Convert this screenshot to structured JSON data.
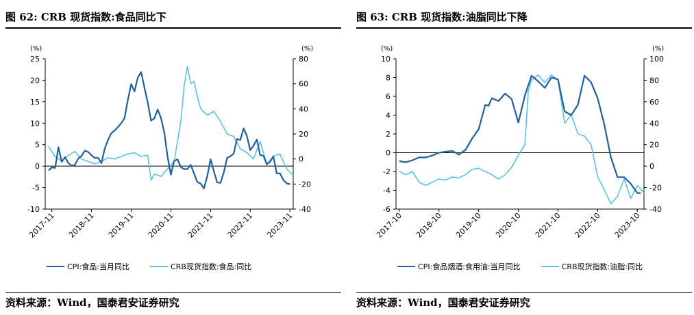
{
  "panels": [
    {
      "title": "图 62: CRB 现货指数:食品同比下",
      "source": "资料来源：Wind，国泰君安证券研究",
      "legend": [
        {
          "label": "CPI:食品:当月同比",
          "color": "#1f5f9e"
        },
        {
          "label": "CRB现货指数:食品:同比",
          "color": "#5bc0eb"
        }
      ]
    },
    {
      "title": "图 63: CRB 现货指数:油脂同比下降",
      "source": "资料来源：Wind，国泰君安证券研究",
      "legend": [
        {
          "label": "CPI:食品烟酒:食用油:当月同比",
          "color": "#1f5f9e"
        },
        {
          "label": "CRB现货指数:油脂:同比",
          "color": "#5bc0eb"
        }
      ]
    }
  ],
  "chart_data": [
    {
      "type": "line",
      "x_ticks": [
        "2017-11",
        "2018-11",
        "2019-11",
        "2020-11",
        "2021-11",
        "2022-11",
        "2023-11"
      ],
      "x_range": [
        "2017-09",
        "2023-12"
      ],
      "left_unit": "(%)",
      "right_unit": "(%)",
      "ylim_left": [
        -10,
        25
      ],
      "yticks_left": [
        -10,
        -5,
        0,
        5,
        10,
        15,
        20,
        25
      ],
      "ylim_right": [
        -40,
        80
      ],
      "yticks_right": [
        -40,
        -20,
        0,
        20,
        40,
        60,
        80
      ],
      "zero_line": true,
      "series": [
        {
          "name": "CPI:食品:当月同比",
          "axis": "left",
          "color": "#1f5f9e",
          "x": [
            "2017-10",
            "2017-11",
            "2017-12",
            "2018-01",
            "2018-02",
            "2018-03",
            "2018-04",
            "2018-05",
            "2018-06",
            "2018-07",
            "2018-08",
            "2018-09",
            "2018-10",
            "2018-11",
            "2018-12",
            "2019-01",
            "2019-02",
            "2019-03",
            "2019-04",
            "2019-05",
            "2019-06",
            "2019-07",
            "2019-08",
            "2019-09",
            "2019-10",
            "2019-11",
            "2019-12",
            "2020-01",
            "2020-02",
            "2020-03",
            "2020-04",
            "2020-05",
            "2020-06",
            "2020-07",
            "2020-08",
            "2020-09",
            "2020-10",
            "2020-11",
            "2020-12",
            "2021-01",
            "2021-02",
            "2021-03",
            "2021-04",
            "2021-05",
            "2021-06",
            "2021-07",
            "2021-08",
            "2021-09",
            "2021-10",
            "2021-11",
            "2021-12",
            "2022-01",
            "2022-02",
            "2022-03",
            "2022-04",
            "2022-05",
            "2022-06",
            "2022-07",
            "2022-08",
            "2022-09",
            "2022-10",
            "2022-11",
            "2022-12",
            "2023-01",
            "2023-02",
            "2023-03",
            "2023-04",
            "2023-05",
            "2023-06",
            "2023-07",
            "2023-08",
            "2023-09",
            "2023-10",
            "2023-11"
          ],
          "y": [
            -1.0,
            -0.3,
            -0.4,
            4.4,
            1.0,
            2.1,
            0.7,
            0.1,
            0.3,
            1.8,
            2.4,
            3.6,
            3.3,
            2.5,
            1.9,
            1.9,
            0.7,
            4.1,
            6.1,
            7.7,
            8.3,
            9.1,
            10.0,
            11.2,
            15.5,
            19.1,
            17.4,
            20.6,
            21.9,
            18.3,
            14.8,
            10.6,
            11.1,
            13.2,
            11.2,
            7.9,
            2.2,
            -2.0,
            1.2,
            1.6,
            -0.2,
            -0.7,
            -0.7,
            0.3,
            -1.7,
            -3.7,
            -4.1,
            -5.2,
            -2.4,
            1.6,
            -1.2,
            -3.8,
            -3.9,
            -1.5,
            1.9,
            2.3,
            2.9,
            6.3,
            6.1,
            8.8,
            7.0,
            3.7,
            4.8,
            6.2,
            2.6,
            2.4,
            0.4,
            1.0,
            2.3,
            -1.7,
            -1.7,
            -3.2,
            -4.0,
            -4.2
          ]
        },
        {
          "name": "CRB现货指数:食品:同比",
          "axis": "right",
          "color": "#5bc0eb",
          "x": [
            "2017-10",
            "2017-12",
            "2018-02",
            "2018-04",
            "2018-06",
            "2018-08",
            "2018-10",
            "2018-12",
            "2019-02",
            "2019-04",
            "2019-06",
            "2019-08",
            "2019-10",
            "2019-12",
            "2020-02",
            "2020-04",
            "2020-05",
            "2020-06",
            "2020-08",
            "2020-10",
            "2020-12",
            "2021-02",
            "2021-03",
            "2021-04",
            "2021-05",
            "2021-06",
            "2021-07",
            "2021-08",
            "2021-10",
            "2021-12",
            "2022-02",
            "2022-04",
            "2022-06",
            "2022-08",
            "2022-10",
            "2022-12",
            "2023-02",
            "2023-04",
            "2023-06",
            "2023-08",
            "2023-10",
            "2023-12"
          ],
          "y": [
            10,
            2,
            -2,
            3,
            6,
            0,
            -2,
            -4,
            -2,
            1,
            0,
            2,
            4,
            5,
            2,
            3,
            -17,
            -12,
            -14,
            -8,
            -2,
            30,
            58,
            74,
            60,
            62,
            50,
            40,
            35,
            38,
            30,
            20,
            18,
            8,
            5,
            0,
            14,
            -4,
            2,
            4,
            -8,
            -13
          ]
        }
      ]
    },
    {
      "type": "line",
      "x_ticks": [
        "2017-10",
        "2018-10",
        "2019-10",
        "2020-10",
        "2021-10",
        "2022-10",
        "2023-10"
      ],
      "x_range": [
        "2017-09",
        "2023-12"
      ],
      "left_unit": "(%)",
      "right_unit": "(%)",
      "ylim_left": [
        -6,
        10
      ],
      "yticks_left": [
        -6,
        -4,
        -2,
        0,
        2,
        4,
        6,
        8,
        10
      ],
      "ylim_right": [
        -40,
        100
      ],
      "yticks_right": [
        -40,
        -20,
        0,
        20,
        40,
        60,
        80,
        100
      ],
      "zero_line": true,
      "series": [
        {
          "name": "CPI:食品烟酒:食用油:当月同比",
          "axis": "left",
          "color": "#1f5f9e",
          "x": [
            "2017-10",
            "2017-12",
            "2018-02",
            "2018-04",
            "2018-06",
            "2018-08",
            "2018-10",
            "2018-12",
            "2019-02",
            "2019-04",
            "2019-06",
            "2019-08",
            "2019-10",
            "2019-12",
            "2020-01",
            "2020-02",
            "2020-04",
            "2020-06",
            "2020-08",
            "2020-10",
            "2020-12",
            "2021-02",
            "2021-04",
            "2021-06",
            "2021-08",
            "2021-10",
            "2021-12",
            "2022-02",
            "2022-04",
            "2022-06",
            "2022-08",
            "2022-10",
            "2022-12",
            "2023-02",
            "2023-04",
            "2023-06",
            "2023-08",
            "2023-10",
            "2023-11"
          ],
          "y": [
            -0.9,
            -1.0,
            -0.8,
            -0.5,
            -0.5,
            -0.3,
            0.0,
            0.1,
            0.2,
            -0.2,
            0.3,
            1.5,
            2.5,
            5.1,
            5.0,
            5.8,
            5.5,
            6.3,
            5.7,
            3.2,
            6.1,
            8.2,
            7.6,
            6.9,
            8.0,
            7.8,
            4.4,
            4.0,
            5.1,
            8.2,
            7.5,
            5.8,
            3.0,
            -0.5,
            -2.6,
            -2.6,
            -3.3,
            -4.3,
            -4.3
          ]
        },
        {
          "name": "CRB现货指数:油脂:同比",
          "axis": "right",
          "color": "#5bc0eb",
          "x": [
            "2017-10",
            "2017-12",
            "2018-02",
            "2018-04",
            "2018-06",
            "2018-08",
            "2018-10",
            "2018-12",
            "2019-02",
            "2019-04",
            "2019-06",
            "2019-08",
            "2019-10",
            "2019-12",
            "2020-02",
            "2020-04",
            "2020-06",
            "2020-08",
            "2020-10",
            "2020-12",
            "2021-01",
            "2021-02",
            "2021-04",
            "2021-06",
            "2021-08",
            "2021-10",
            "2021-12",
            "2022-02",
            "2022-04",
            "2022-06",
            "2022-08",
            "2022-10",
            "2022-12",
            "2023-02",
            "2023-04",
            "2023-06",
            "2023-08",
            "2023-10",
            "2023-12"
          ],
          "y": [
            -5,
            -8,
            -5,
            -15,
            -18,
            -15,
            -12,
            -13,
            -10,
            -11,
            -8,
            -3,
            -2,
            -5,
            -8,
            -12,
            -8,
            -1,
            10,
            20,
            70,
            80,
            85,
            78,
            85,
            80,
            40,
            48,
            30,
            28,
            20,
            -10,
            -22,
            -35,
            -28,
            -12,
            -30,
            -18,
            -25
          ]
        }
      ]
    }
  ]
}
